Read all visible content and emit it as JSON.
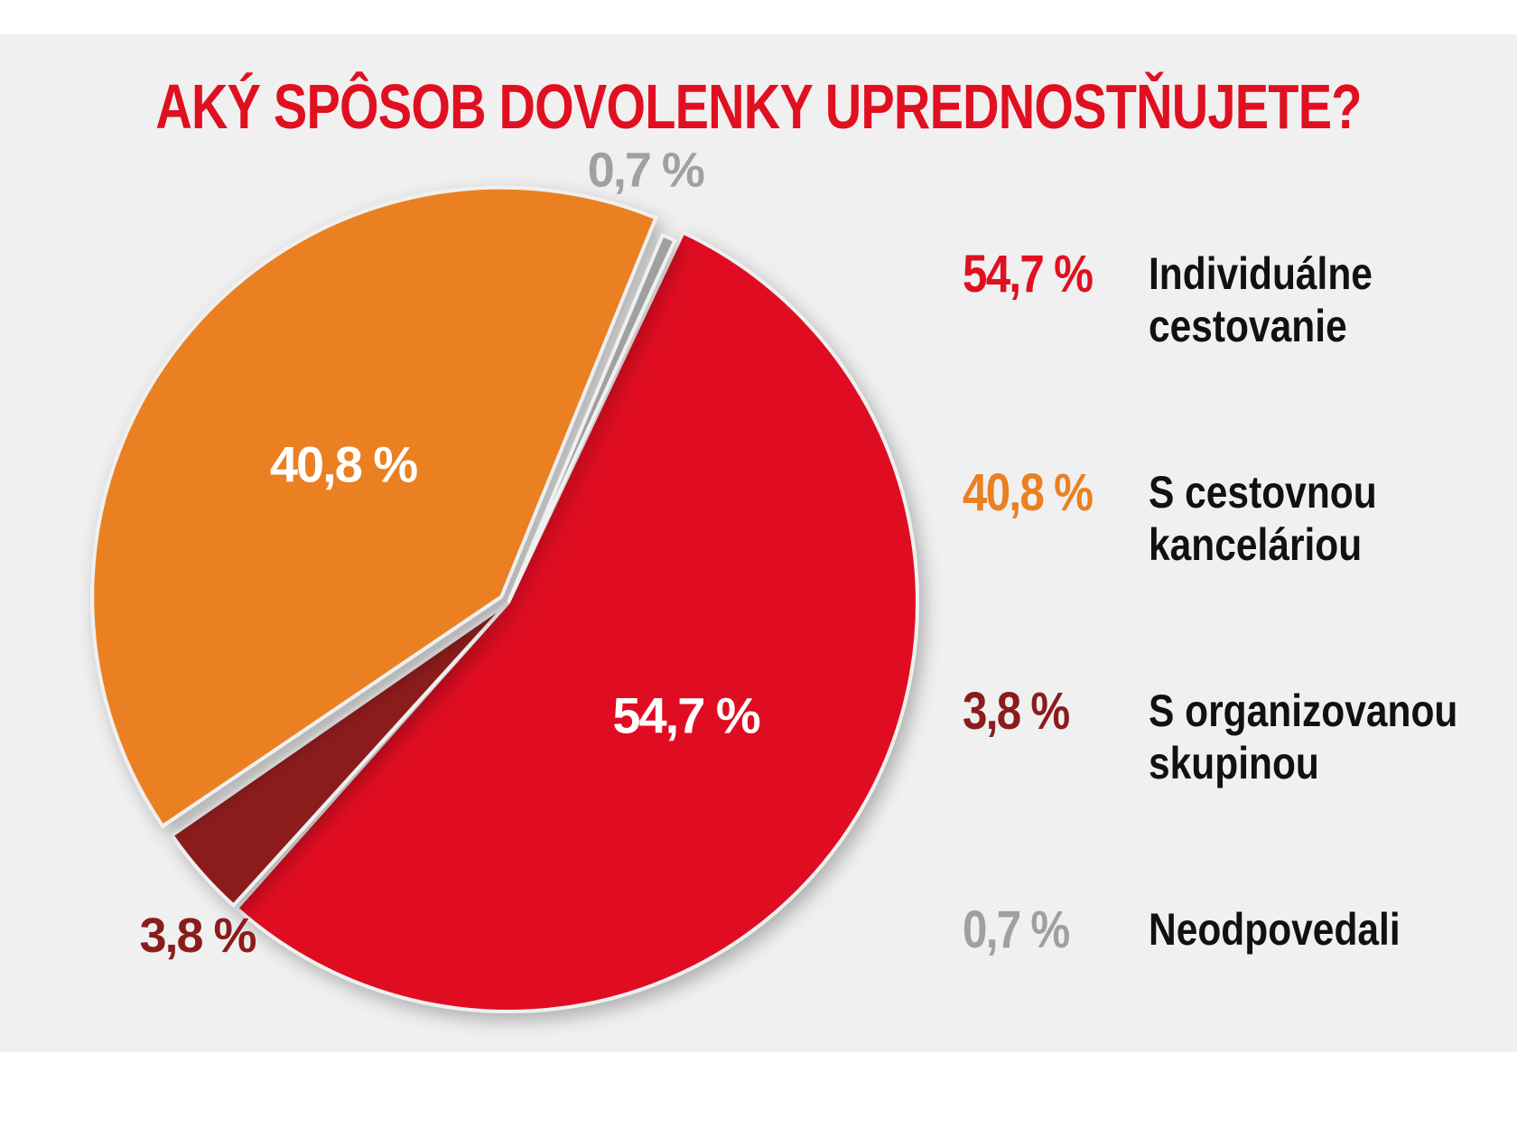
{
  "chart_data": {
    "type": "pie",
    "title": "AKÝ SPÔSOB DOVOLENKY UPREDNOSTŇUJETE?",
    "slices": [
      {
        "label": "Individuálne cestovanie",
        "value": 54.7,
        "display": "54,7 %",
        "color": "#e01020"
      },
      {
        "label": "S organizovanou skupinou",
        "value": 3.8,
        "display": "3,8 %",
        "color": "#8c1c1c"
      },
      {
        "label": "S cestovnou kanceláriou",
        "value": 40.8,
        "display": "40,8 %",
        "color": "#eb8022"
      },
      {
        "label": "Neodpovedali",
        "value": 0.7,
        "display": "0,7 %",
        "color": "#a0a0a0"
      }
    ],
    "legend": [
      {
        "value": "54,7 %",
        "label": "Individuálne cestovanie",
        "color": "#e01020"
      },
      {
        "value": "40,8 %",
        "label": "S cestovnou kanceláriou",
        "color": "#eb8022"
      },
      {
        "value": "3,8 %",
        "label": "S organizovanou skupinou",
        "color": "#8c1c1c"
      },
      {
        "value": "0,7 %",
        "label": "Neodpovedali",
        "color": "#a0a0a0"
      }
    ],
    "legend_position": "right",
    "title_color": "#e01020"
  }
}
